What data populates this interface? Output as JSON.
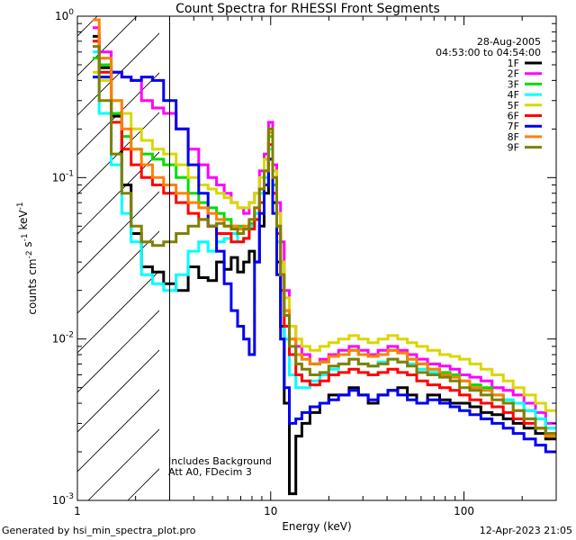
{
  "title": "Count Spectra for RHESSI Front Segments",
  "date": "28-Aug-2005",
  "time_range": "04:53:00 to 04:54:00",
  "footer_left": "Generated by hsi_min_spectra_plot.pro",
  "footer_right": "12-Apr-2023 21:05",
  "notes": [
    "Includes Background",
    "Att A0, FDecim 3"
  ],
  "colors": {
    "1F": "#000000",
    "2F": "#ff00ff",
    "3F": "#00dd00",
    "4F": "#00ffff",
    "5F": "#d8d800",
    "6F": "#ff0000",
    "7F": "#0000ee",
    "8F": "#ff8000",
    "9F": "#808000"
  },
  "chart_data": {
    "type": "line",
    "xscale": "log",
    "yscale": "log",
    "xlim": [
      1,
      300
    ],
    "ylim": [
      0.001,
      1
    ],
    "xlabel": "Energy (keV)",
    "ylabel": "counts cm^-2 s^-1 keV^-1",
    "x_tick_labels": [
      "1",
      "10",
      "100"
    ],
    "y_tick_labels": [
      "10^0",
      "10^-1",
      "10^-2",
      "10^-3"
    ],
    "hatched_region_below_keV": 3,
    "legend_position": "top-right",
    "x": [
      1.2,
      1.4,
      1.6,
      1.8,
      2.0,
      2.3,
      2.6,
      3.0,
      3.5,
      4.0,
      4.5,
      5.0,
      5.5,
      6.0,
      6.5,
      7.0,
      7.5,
      8.0,
      8.5,
      9.0,
      9.5,
      10.0,
      10.5,
      11.0,
      11.5,
      12.0,
      13.0,
      14.0,
      15.0,
      17.0,
      19.0,
      21.0,
      24.0,
      27.0,
      30.0,
      34.0,
      38.0,
      43.0,
      48.0,
      54.0,
      60.0,
      70.0,
      80.0,
      90.0,
      100.0,
      115.0,
      130.0,
      150.0,
      170.0,
      190.0,
      220.0,
      250.0,
      280.0
    ],
    "series": [
      {
        "name": "1F",
        "values": [
          0.75,
          0.48,
          0.24,
          0.09,
          0.045,
          0.028,
          0.026,
          0.022,
          0.02,
          0.028,
          0.024,
          0.023,
          0.03,
          0.027,
          0.032,
          0.026,
          0.03,
          0.035,
          0.03,
          0.05,
          0.08,
          0.13,
          0.07,
          0.03,
          0.012,
          0.004,
          0.0011,
          0.0025,
          0.003,
          0.0035,
          0.004,
          0.0045,
          0.0045,
          0.005,
          0.0045,
          0.004,
          0.0045,
          0.0048,
          0.005,
          0.0045,
          0.004,
          0.0045,
          0.0042,
          0.004,
          0.004,
          0.0038,
          0.0035,
          0.0034,
          0.0032,
          0.003,
          0.0028,
          0.0026,
          0.0024
        ]
      },
      {
        "name": "2F",
        "values": [
          0.85,
          0.6,
          0.45,
          0.42,
          0.4,
          0.3,
          0.27,
          0.25,
          0.2,
          0.15,
          0.12,
          0.1,
          0.09,
          0.08,
          0.07,
          0.065,
          0.06,
          0.07,
          0.08,
          0.11,
          0.14,
          0.22,
          0.12,
          0.07,
          0.04,
          0.02,
          0.012,
          0.009,
          0.008,
          0.007,
          0.0075,
          0.008,
          0.0085,
          0.009,
          0.0085,
          0.008,
          0.0085,
          0.009,
          0.0085,
          0.008,
          0.0075,
          0.007,
          0.0068,
          0.0065,
          0.006,
          0.0058,
          0.0055,
          0.005,
          0.0048,
          0.0045,
          0.004,
          0.0035,
          0.003
        ]
      },
      {
        "name": "3F",
        "values": [
          0.55,
          0.5,
          0.25,
          0.18,
          0.15,
          0.14,
          0.13,
          0.12,
          0.1,
          0.08,
          0.07,
          0.065,
          0.06,
          0.055,
          0.05,
          0.05,
          0.048,
          0.052,
          0.06,
          0.08,
          0.11,
          0.18,
          0.09,
          0.05,
          0.025,
          0.015,
          0.01,
          0.008,
          0.0075,
          0.007,
          0.0072,
          0.0078,
          0.008,
          0.0085,
          0.008,
          0.0078,
          0.008,
          0.0085,
          0.0082,
          0.0075,
          0.007,
          0.0065,
          0.0062,
          0.006,
          0.0055,
          0.0052,
          0.005,
          0.0045,
          0.0042,
          0.004,
          0.0036,
          0.0032,
          0.0028
        ]
      },
      {
        "name": "4F",
        "values": [
          0.6,
          0.25,
          0.12,
          0.06,
          0.04,
          0.025,
          0.022,
          0.02,
          0.025,
          0.035,
          0.04,
          0.035,
          0.04,
          0.042,
          0.045,
          0.04,
          0.042,
          0.05,
          0.06,
          0.08,
          0.1,
          0.15,
          0.08,
          0.04,
          0.02,
          0.01,
          0.006,
          0.005,
          0.005,
          0.0055,
          0.006,
          0.0065,
          0.007,
          0.0075,
          0.007,
          0.0068,
          0.0072,
          0.0075,
          0.0072,
          0.007,
          0.0065,
          0.0062,
          0.006,
          0.0058,
          0.0055,
          0.005,
          0.0048,
          0.0045,
          0.0042,
          0.004,
          0.0036,
          0.0032,
          0.0028
        ]
      },
      {
        "name": "5F",
        "values": [
          0.45,
          0.4,
          0.3,
          0.25,
          0.2,
          0.17,
          0.15,
          0.14,
          0.12,
          0.1,
          0.09,
          0.085,
          0.08,
          0.075,
          0.07,
          0.065,
          0.065,
          0.07,
          0.08,
          0.1,
          0.13,
          0.2,
          0.11,
          0.06,
          0.03,
          0.018,
          0.012,
          0.01,
          0.009,
          0.0085,
          0.009,
          0.0095,
          0.01,
          0.0105,
          0.01,
          0.0095,
          0.01,
          0.0105,
          0.01,
          0.0095,
          0.009,
          0.0085,
          0.008,
          0.0078,
          0.0075,
          0.007,
          0.0065,
          0.006,
          0.0055,
          0.005,
          0.0045,
          0.004,
          0.0036
        ]
      },
      {
        "name": "6F",
        "values": [
          0.7,
          0.45,
          0.22,
          0.15,
          0.12,
          0.1,
          0.09,
          0.08,
          0.07,
          0.06,
          0.055,
          0.05,
          0.045,
          0.045,
          0.04,
          0.04,
          0.042,
          0.048,
          0.055,
          0.07,
          0.09,
          0.16,
          0.08,
          0.045,
          0.02,
          0.012,
          0.008,
          0.006,
          0.0055,
          0.0052,
          0.0055,
          0.006,
          0.0062,
          0.0065,
          0.0062,
          0.006,
          0.0062,
          0.0065,
          0.0062,
          0.006,
          0.0055,
          0.0052,
          0.005,
          0.0048,
          0.0045,
          0.0042,
          0.004,
          0.0038,
          0.0035,
          0.0032,
          0.003,
          0.0028,
          0.0026
        ]
      },
      {
        "name": "7F",
        "values": [
          0.42,
          0.42,
          0.45,
          0.42,
          0.4,
          0.42,
          0.4,
          0.3,
          0.2,
          0.12,
          0.08,
          0.05,
          0.035,
          0.022,
          0.015,
          0.012,
          0.01,
          0.008,
          0.03,
          0.06,
          0.09,
          0.13,
          0.06,
          0.025,
          0.01,
          0.005,
          0.003,
          0.0032,
          0.0035,
          0.0038,
          0.004,
          0.0042,
          0.0045,
          0.0048,
          0.0045,
          0.0042,
          0.0045,
          0.0048,
          0.0045,
          0.0042,
          0.004,
          0.0042,
          0.004,
          0.0038,
          0.0036,
          0.0034,
          0.0032,
          0.003,
          0.0028,
          0.0026,
          0.0024,
          0.0022,
          0.002
        ]
      },
      {
        "name": "8F",
        "values": [
          0.95,
          0.55,
          0.3,
          0.2,
          0.15,
          0.12,
          0.1,
          0.09,
          0.08,
          0.07,
          0.065,
          0.06,
          0.055,
          0.05,
          0.05,
          0.048,
          0.05,
          0.055,
          0.065,
          0.085,
          0.11,
          0.19,
          0.1,
          0.05,
          0.025,
          0.015,
          0.01,
          0.008,
          0.0075,
          0.007,
          0.0072,
          0.0078,
          0.008,
          0.0085,
          0.008,
          0.0078,
          0.008,
          0.0085,
          0.0082,
          0.0075,
          0.007,
          0.0065,
          0.006,
          0.0058,
          0.0055,
          0.005,
          0.0048,
          0.0045,
          0.004,
          0.0036,
          0.0032,
          0.0028,
          0.0025
        ]
      },
      {
        "name": "9F",
        "values": [
          0.65,
          0.3,
          0.14,
          0.08,
          0.05,
          0.04,
          0.038,
          0.04,
          0.045,
          0.05,
          0.055,
          0.05,
          0.052,
          0.05,
          0.048,
          0.045,
          0.048,
          0.055,
          0.065,
          0.085,
          0.11,
          0.2,
          0.1,
          0.05,
          0.025,
          0.014,
          0.009,
          0.007,
          0.0065,
          0.006,
          0.0062,
          0.0068,
          0.007,
          0.0075,
          0.007,
          0.0068,
          0.007,
          0.0075,
          0.0072,
          0.0068,
          0.0062,
          0.006,
          0.0058,
          0.0055,
          0.005,
          0.0048,
          0.0045,
          0.0042,
          0.004,
          0.0036,
          0.0032,
          0.0028,
          0.0026
        ]
      }
    ]
  }
}
